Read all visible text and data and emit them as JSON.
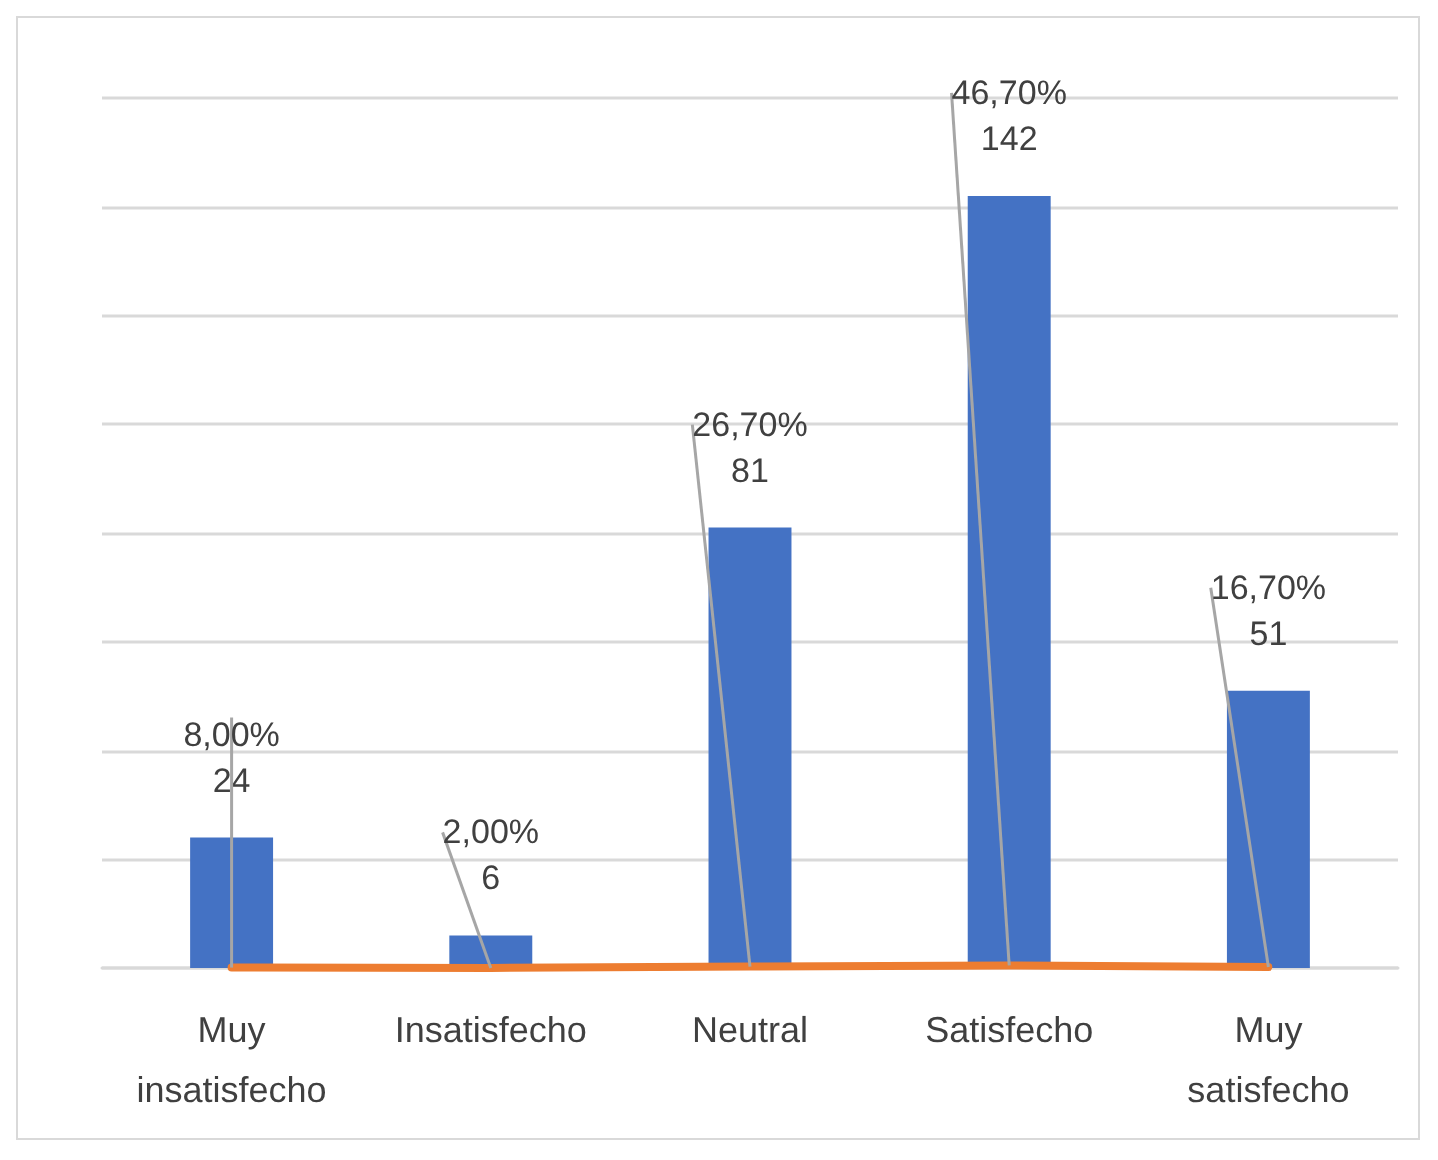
{
  "chart_data": {
    "type": "bar",
    "categories": [
      "Muy insatisfecho",
      "Insatisfecho",
      "Neutral",
      "Satisfecho",
      "Muy satisfecho"
    ],
    "series": [
      {
        "color": "#4472c4",
        "values": [
          24,
          6,
          81,
          142,
          51
        ]
      },
      {
        "type": "line",
        "color": "#ed7d31",
        "values": [
          0.08,
          0.02,
          0.267,
          0.467,
          0.167
        ],
        "value_labels": [
          "8,00%",
          "2,00%",
          "26,70%",
          "46,70%",
          "16,70%"
        ]
      }
    ],
    "data_labels": true,
    "ylim": [
      0,
      160
    ],
    "yticks": [
      {
        "value": 0,
        "label": null
      },
      {
        "value": 20,
        "label": null
      },
      {
        "value": 40,
        "label": null
      },
      {
        "value": 60,
        "label": null
      },
      {
        "value": 80,
        "label": null
      },
      {
        "value": 100,
        "label": null
      },
      {
        "value": 120,
        "label": null
      },
      {
        "value": 140,
        "label": null
      },
      {
        "value": 160,
        "label": null
      }
    ],
    "grid": "y",
    "tick_labels": "x",
    "marker": "none"
  }
}
